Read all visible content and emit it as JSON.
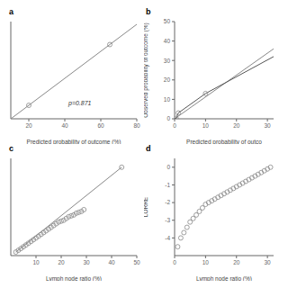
{
  "chart_data": [
    {
      "type": "scatter",
      "title": "a",
      "xlabel": "Predicted probability of outcome (%)",
      "xlim": [
        10,
        80
      ],
      "ylim": [
        8,
        80
      ],
      "xticks": [
        20,
        40,
        60,
        80
      ],
      "tick_labels": "x",
      "grid": false,
      "annotations": [
        {
          "text": "p=0.871",
          "x": 42,
          "y": 18
        }
      ],
      "series": [
        {
          "type": "line",
          "color": "#888888",
          "x": [
            10,
            20,
            40,
            60,
            70,
            80
          ],
          "values": [
            8,
            18,
            38,
            58,
            68,
            78
          ]
        },
        {
          "type": "scatter",
          "color": "#888888",
          "marker": "open_circle",
          "x": [
            20,
            65
          ],
          "values": [
            18,
            63
          ]
        }
      ]
    },
    {
      "type": "scatter",
      "title": "b",
      "xlabel": "Predicted probability of outco",
      "ylabel": "Observed probability of outcome (%)",
      "xlim": [
        0,
        32
      ],
      "ylim": [
        0,
        50
      ],
      "xticks": [
        0,
        10,
        20,
        30
      ],
      "yticks": [
        0,
        10,
        20,
        30,
        40,
        50
      ],
      "grid": false,
      "series": [
        {
          "type": "line",
          "color": "#888888",
          "x": [
            0,
            32
          ],
          "values": [
            0,
            36
          ]
        },
        {
          "type": "line",
          "color": "#555555",
          "x": [
            0,
            0.5,
            1.2,
            10,
            32
          ],
          "values": [
            0,
            0.2,
            3,
            13,
            32
          ]
        },
        {
          "type": "scatter",
          "color": "#888888",
          "marker": "open_circle",
          "x": [
            0.5,
            1.2,
            10
          ],
          "values": [
            0.2,
            3,
            13
          ]
        }
      ]
    },
    {
      "type": "scatter",
      "title": "c",
      "xlabel": "Lymph node ratio (%)",
      "xlim": [
        0,
        50
      ],
      "ylim": [
        0,
        55
      ],
      "xticks": [
        10,
        20,
        30,
        40,
        50
      ],
      "tick_labels": "x",
      "grid": false,
      "series": [
        {
          "type": "line",
          "color": "#888888",
          "x": [
            2,
            44
          ],
          "values": [
            2,
            50
          ]
        },
        {
          "type": "scatter",
          "color": "#888888",
          "marker": "open_circle",
          "x": [
            2,
            3,
            4,
            5,
            6,
            7,
            8,
            9,
            10,
            11,
            12,
            13,
            14,
            15,
            16,
            17,
            18,
            19,
            20,
            21,
            22,
            23,
            24,
            25,
            26,
            27,
            28,
            29,
            44
          ],
          "values": [
            2,
            3,
            4,
            5,
            6,
            7,
            8,
            9,
            10,
            11,
            12,
            13,
            14,
            15,
            16,
            17,
            18,
            19,
            19.5,
            20,
            21,
            22,
            22.5,
            23,
            24,
            24.5,
            25,
            26,
            50
          ]
        }
      ]
    },
    {
      "type": "scatter",
      "title": "d",
      "xlabel": "Lymph node ratio (%)",
      "ylabel": "LORRE",
      "xlim": [
        0,
        32
      ],
      "ylim": [
        -5,
        0.5
      ],
      "xticks": [
        0,
        10,
        20,
        30
      ],
      "yticks": [
        0,
        -1,
        -2,
        -3,
        -4
      ],
      "grid": false,
      "series": [
        {
          "type": "scatter",
          "color": "#888888",
          "marker": "open_circle",
          "x": [
            1,
            2,
            3,
            4,
            5,
            6,
            7,
            8,
            9,
            10,
            11,
            12,
            13,
            14,
            15,
            16,
            17,
            18,
            19,
            20,
            21,
            22,
            23,
            24,
            25,
            26,
            27,
            28,
            29,
            30,
            31
          ],
          "values": [
            -4.5,
            -4.0,
            -3.7,
            -3.4,
            -3.1,
            -2.9,
            -2.7,
            -2.5,
            -2.3,
            -2.1,
            -2.0,
            -1.9,
            -1.8,
            -1.7,
            -1.6,
            -1.5,
            -1.4,
            -1.3,
            -1.2,
            -1.1,
            -1.0,
            -0.9,
            -0.8,
            -0.7,
            -0.6,
            -0.5,
            -0.4,
            -0.3,
            -0.2,
            -0.1,
            0.0
          ]
        }
      ]
    }
  ]
}
